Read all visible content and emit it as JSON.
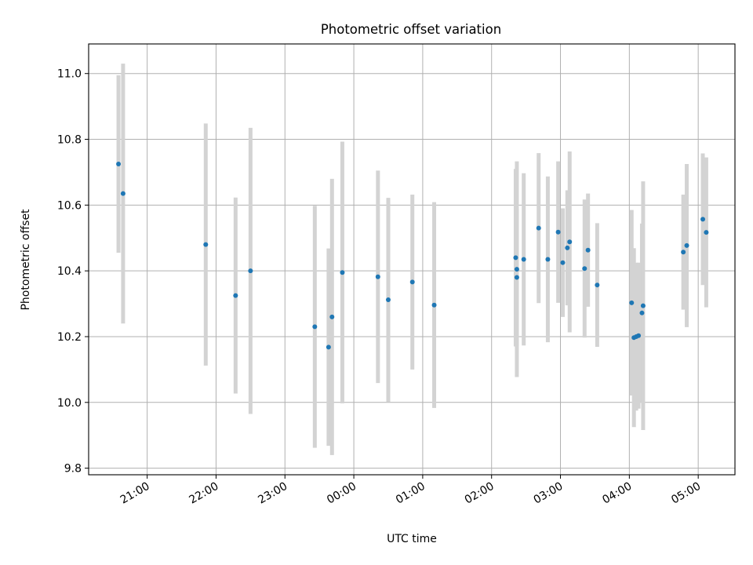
{
  "chart_data": {
    "type": "scatter",
    "title": "Photometric offset variation",
    "xlabel": "UTC time",
    "ylabel": "Photometric offset",
    "x_ticks": [
      "21:00",
      "22:00",
      "23:00",
      "00:00",
      "01:00",
      "02:00",
      "03:00",
      "04:00",
      "05:00"
    ],
    "x_tick_hours": [
      21,
      22,
      23,
      24,
      25,
      26,
      27,
      28,
      29
    ],
    "y_ticks": [
      "9.8",
      "10.0",
      "10.2",
      "10.4",
      "10.6",
      "10.8",
      "11.0"
    ],
    "y_tick_values": [
      9.8,
      10.0,
      10.2,
      10.4,
      10.6,
      10.8,
      11.0
    ],
    "xlim": [
      "20:09",
      "05:32"
    ],
    "ylim": [
      9.78,
      11.09
    ],
    "grid": true,
    "point_color": "#1f77b4",
    "errorbar_color": "#d3d3d3",
    "points": [
      {
        "x": "20:35",
        "y": 10.725,
        "err": 0.27
      },
      {
        "x": "20:39",
        "y": 10.635,
        "err": 0.395
      },
      {
        "x": "21:51",
        "y": 10.48,
        "err": 0.368
      },
      {
        "x": "22:17",
        "y": 10.325,
        "err": 0.298
      },
      {
        "x": "22:30",
        "y": 10.4,
        "err": 0.435
      },
      {
        "x": "23:26",
        "y": 10.23,
        "err": 0.368
      },
      {
        "x": "23:38",
        "y": 10.168,
        "err": 0.3
      },
      {
        "x": "23:41",
        "y": 10.26,
        "err": 0.42
      },
      {
        "x": "23:50",
        "y": 10.395,
        "err": 0.398
      },
      {
        "x": "00:21",
        "y": 10.382,
        "err": 0.323
      },
      {
        "x": "00:30",
        "y": 10.312,
        "err": 0.31
      },
      {
        "x": "00:51",
        "y": 10.366,
        "err": 0.266
      },
      {
        "x": "01:10",
        "y": 10.296,
        "err": 0.313
      },
      {
        "x": "02:21",
        "y": 10.44,
        "err": 0.27
      },
      {
        "x": "02:22",
        "y": 10.405,
        "err": 0.328
      },
      {
        "x": "02:22",
        "y": 10.38,
        "err": 0.21
      },
      {
        "x": "02:28",
        "y": 10.435,
        "err": 0.262
      },
      {
        "x": "02:41",
        "y": 10.53,
        "err": 0.228
      },
      {
        "x": "02:49",
        "y": 10.435,
        "err": 0.252
      },
      {
        "x": "02:58",
        "y": 10.518,
        "err": 0.215
      },
      {
        "x": "03:02",
        "y": 10.425,
        "err": 0.165
      },
      {
        "x": "03:06",
        "y": 10.47,
        "err": 0.175
      },
      {
        "x": "03:08",
        "y": 10.488,
        "err": 0.275
      },
      {
        "x": "03:21",
        "y": 10.407,
        "err": 0.21
      },
      {
        "x": "03:24",
        "y": 10.463,
        "err": 0.172
      },
      {
        "x": "03:32",
        "y": 10.357,
        "err": 0.188
      },
      {
        "x": "04:02",
        "y": 10.303,
        "err": 0.282
      },
      {
        "x": "04:04",
        "y": 10.197,
        "err": 0.272
      },
      {
        "x": "04:06",
        "y": 10.2,
        "err": 0.225
      },
      {
        "x": "04:08",
        "y": 10.203,
        "err": 0.222
      },
      {
        "x": "04:11",
        "y": 10.272,
        "err": 0.272
      },
      {
        "x": "04:12",
        "y": 10.294,
        "err": 0.378
      },
      {
        "x": "04:47",
        "y": 10.457,
        "err": 0.175
      },
      {
        "x": "04:50",
        "y": 10.477,
        "err": 0.248
      },
      {
        "x": "05:04",
        "y": 10.557,
        "err": 0.2
      },
      {
        "x": "05:07",
        "y": 10.517,
        "err": 0.228
      }
    ]
  }
}
